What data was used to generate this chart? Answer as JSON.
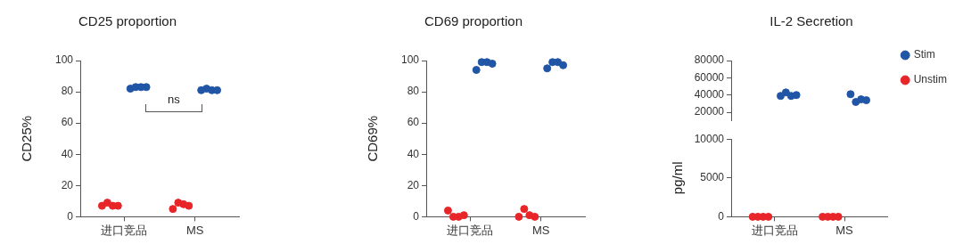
{
  "chart_data": [
    {
      "type": "scatter",
      "title": "CD25 proportion",
      "ylabel": "CD25%",
      "categories": [
        "进口竞品",
        "MS"
      ],
      "ylim": [
        0,
        100
      ],
      "yticks": [
        0,
        20,
        40,
        60,
        80,
        100
      ],
      "grid": false,
      "marker": "circle",
      "annotations": [
        "ns"
      ],
      "series": [
        {
          "color": "#2155a6",
          "x": [
            "进口竞品",
            "进口竞品",
            "进口竞品",
            "进口竞品",
            "MS",
            "MS",
            "MS",
            "MS"
          ],
          "values": [
            82,
            83,
            83,
            83,
            81,
            82,
            81,
            81
          ]
        },
        {
          "color": "#e8262a",
          "x": [
            "进口竞品",
            "进口竞品",
            "进口竞品",
            "进口竞品",
            "MS",
            "MS",
            "MS",
            "MS"
          ],
          "values": [
            7,
            9,
            7,
            7,
            5,
            9,
            8,
            7
          ]
        }
      ]
    },
    {
      "type": "scatter",
      "title": "CD69 proportion",
      "ylabel": "CD69%",
      "categories": [
        "进口竞品",
        "MS"
      ],
      "ylim": [
        0,
        100
      ],
      "yticks": [
        0,
        20,
        40,
        60,
        80,
        100
      ],
      "grid": false,
      "marker": "circle",
      "series": [
        {
          "color": "#2155a6",
          "x": [
            "进口竞品",
            "进口竞品",
            "进口竞品",
            "进口竞品",
            "MS",
            "MS",
            "MS",
            "MS"
          ],
          "values": [
            94,
            99,
            99,
            98,
            95,
            99,
            99,
            97
          ]
        },
        {
          "color": "#e8262a",
          "x": [
            "进口竞品",
            "进口竞品",
            "进口竞品",
            "进口竞品",
            "MS",
            "MS",
            "MS",
            "MS"
          ],
          "values": [
            4,
            0,
            0,
            1,
            0,
            5,
            1,
            0
          ]
        }
      ]
    },
    {
      "type": "scatter",
      "title": "IL-2 Secretion",
      "categories": [
        "进口竞品",
        "MS"
      ],
      "ylim": [
        10000,
        80000
      ],
      "yticks": [
        20000,
        40000,
        60000,
        80000
      ],
      "tick_labels": "y",
      "grid": false,
      "marker": "circle",
      "legend": "top right",
      "series": [
        {
          "name": "Stim",
          "color": "#2155a6",
          "x": [
            "进口竞品",
            "进口竞品",
            "进口竞品",
            "进口竞品",
            "MS",
            "MS",
            "MS",
            "MS"
          ],
          "values": [
            39000,
            43000,
            39000,
            40000,
            41000,
            32000,
            35000,
            34000
          ]
        },
        {
          "name": "Unstim",
          "color": "#e8262a",
          "x": [
            "进口竞品",
            "进口竞品",
            "进口竞品",
            "进口竞品",
            "MS",
            "MS",
            "MS",
            "MS"
          ],
          "values": [
            null,
            null,
            null,
            null,
            null,
            null,
            null,
            null
          ]
        }
      ]
    },
    {
      "type": "scatter",
      "ylabel": "pg/ml",
      "categories": [
        "进口竞品",
        "MS"
      ],
      "ylim": [
        0,
        10000
      ],
      "yticks": [
        0,
        5000,
        10000
      ],
      "grid": false,
      "marker": "circle",
      "series": [
        {
          "color": "#2155a6",
          "x": [
            "进口竞品",
            "进口竞品",
            "进口竞品",
            "进口竞品",
            "MS",
            "MS",
            "MS",
            "MS"
          ],
          "values": [
            null,
            null,
            null,
            null,
            null,
            null,
            null,
            null
          ]
        },
        {
          "color": "#e8262a",
          "x": [
            "进口竞品",
            "进口竞品",
            "进口竞品",
            "进口竞品",
            "MS",
            "MS",
            "MS",
            "MS"
          ],
          "values": [
            0,
            0,
            0,
            0,
            0,
            0,
            0,
            0
          ]
        }
      ]
    }
  ]
}
